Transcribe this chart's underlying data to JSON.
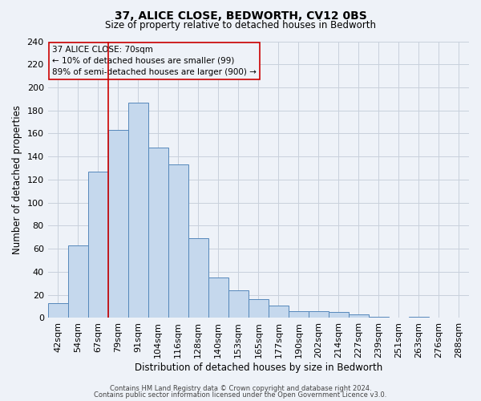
{
  "title": "37, ALICE CLOSE, BEDWORTH, CV12 0BS",
  "subtitle": "Size of property relative to detached houses in Bedworth",
  "xlabel": "Distribution of detached houses by size in Bedworth",
  "ylabel": "Number of detached properties",
  "bar_labels": [
    "42sqm",
    "54sqm",
    "67sqm",
    "79sqm",
    "91sqm",
    "104sqm",
    "116sqm",
    "128sqm",
    "140sqm",
    "153sqm",
    "165sqm",
    "177sqm",
    "190sqm",
    "202sqm",
    "214sqm",
    "227sqm",
    "239sqm",
    "251sqm",
    "263sqm",
    "276sqm",
    "288sqm"
  ],
  "bar_values": [
    13,
    63,
    127,
    163,
    187,
    148,
    133,
    69,
    35,
    24,
    16,
    11,
    6,
    6,
    5,
    3,
    1,
    0,
    1,
    0,
    0
  ],
  "bar_color": "#c5d8ed",
  "bar_edge_color": "#5588bb",
  "vline_color": "#cc0000",
  "vline_pos": 2.5,
  "ylim": [
    0,
    240
  ],
  "yticks": [
    0,
    20,
    40,
    60,
    80,
    100,
    120,
    140,
    160,
    180,
    200,
    220,
    240
  ],
  "annotation_title": "37 ALICE CLOSE: 70sqm",
  "annotation_line1": "← 10% of detached houses are smaller (99)",
  "annotation_line2": "89% of semi-detached houses are larger (900) →",
  "footer_line1": "Contains HM Land Registry data © Crown copyright and database right 2024.",
  "footer_line2": "Contains public sector information licensed under the Open Government Licence v3.0.",
  "bg_color": "#eef2f8",
  "grid_color": "#c8d0dc",
  "title_fontsize": 10,
  "subtitle_fontsize": 8.5,
  "xlabel_fontsize": 8.5,
  "ylabel_fontsize": 8.5,
  "xtick_fontsize": 7,
  "ytick_fontsize": 8,
  "footer_fontsize": 6,
  "ann_fontsize": 7.5
}
